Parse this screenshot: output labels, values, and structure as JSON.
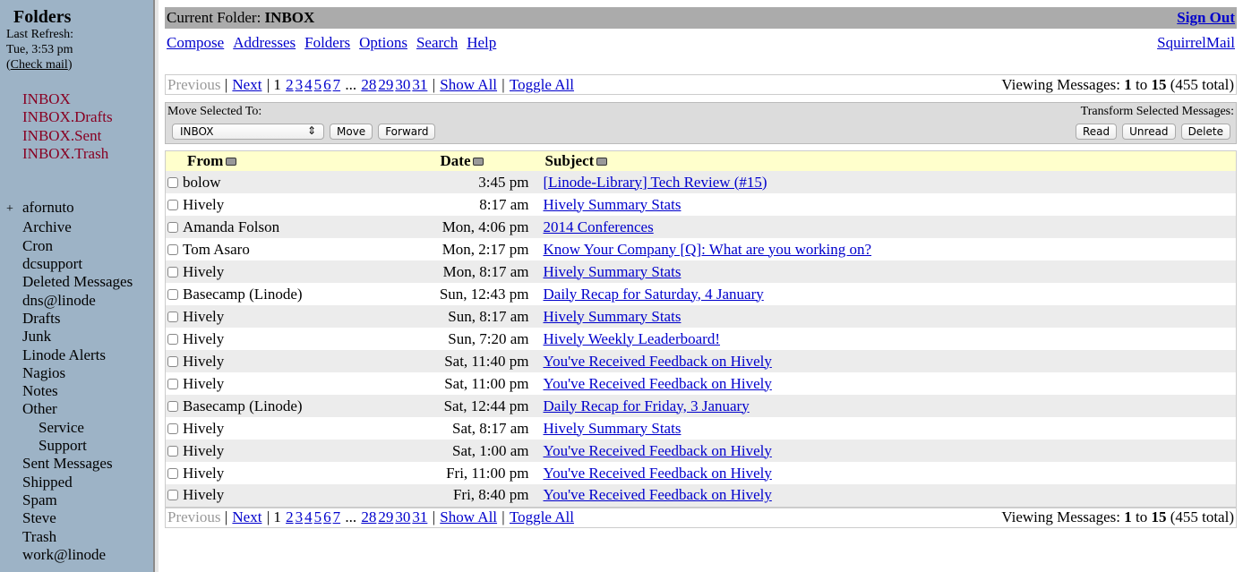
{
  "sidebar": {
    "title": "Folders",
    "last_refresh_label": "Last Refresh:",
    "last_refresh_time": "Tue, 3:53 pm",
    "check_mail": "Check mail",
    "special": [
      "INBOX",
      "INBOX.Drafts",
      "INBOX.Sent",
      "INBOX.Trash"
    ],
    "folders": [
      {
        "label": "afornuto",
        "prefix": "+",
        "level": 0
      },
      {
        "label": "Archive",
        "level": 0
      },
      {
        "label": "Cron",
        "level": 0
      },
      {
        "label": "dcsupport",
        "level": 0
      },
      {
        "label": "Deleted Messages",
        "level": 0
      },
      {
        "label": "dns@linode",
        "level": 0
      },
      {
        "label": "Drafts",
        "level": 0
      },
      {
        "label": "Junk",
        "level": 0
      },
      {
        "label": "Linode Alerts",
        "level": 0
      },
      {
        "label": "Nagios",
        "level": 0
      },
      {
        "label": "Notes",
        "level": 0
      },
      {
        "label": "Other",
        "level": 0
      },
      {
        "label": "Service",
        "level": 1
      },
      {
        "label": "Support",
        "level": 1
      },
      {
        "label": "Sent Messages",
        "level": 0
      },
      {
        "label": "Shipped",
        "level": 0
      },
      {
        "label": "Spam",
        "level": 0
      },
      {
        "label": "Steve",
        "level": 0
      },
      {
        "label": "Trash",
        "level": 0
      },
      {
        "label": "work@linode",
        "level": 0
      }
    ]
  },
  "header": {
    "current_folder_label": "Current Folder:",
    "current_folder": "INBOX",
    "sign_out": "Sign Out",
    "brand": "SquirrelMail",
    "nav": [
      "Compose",
      "Addresses",
      "Folders",
      "Options",
      "Search",
      "Help"
    ]
  },
  "pager": {
    "previous": "Previous",
    "next": "Next",
    "current": "1",
    "pages": [
      "2",
      "3",
      "4",
      "5",
      "6",
      "7"
    ],
    "ellipsis": "...",
    "pages_end": [
      "28",
      "29",
      "30",
      "31"
    ],
    "show_all": "Show All",
    "toggle_all": "Toggle All",
    "viewing_label": "Viewing Messages:",
    "from": "1",
    "to_label": "to",
    "to": "15",
    "total": "(455 total)"
  },
  "actions": {
    "move_label": "Move Selected To:",
    "move_target": "INBOX",
    "move": "Move",
    "forward": "Forward",
    "transform_label": "Transform Selected Messages:",
    "read": "Read",
    "unread": "Unread",
    "delete": "Delete"
  },
  "table": {
    "columns": [
      "From",
      "Date",
      "Subject"
    ],
    "rows": [
      {
        "from": "bolow",
        "date": "3:45 pm",
        "subject": "[Linode-Library] Tech Review (#15)"
      },
      {
        "from": "Hively",
        "date": "8:17 am",
        "subject": "Hively Summary Stats"
      },
      {
        "from": "Amanda Folson",
        "date": "Mon, 4:06 pm",
        "subject": "2014 Conferences"
      },
      {
        "from": "Tom Asaro",
        "date": "Mon, 2:17 pm",
        "subject": "Know Your Company [Q]: What are you working on?"
      },
      {
        "from": "Hively",
        "date": "Mon, 8:17 am",
        "subject": "Hively Summary Stats"
      },
      {
        "from": "Basecamp (Linode)",
        "date": "Sun, 12:43 pm",
        "subject": "Daily Recap for Saturday, 4 January"
      },
      {
        "from": "Hively",
        "date": "Sun, 8:17 am",
        "subject": "Hively Summary Stats"
      },
      {
        "from": "Hively",
        "date": "Sun, 7:20 am",
        "subject": "Hively Weekly Leaderboard!"
      },
      {
        "from": "Hively",
        "date": "Sat, 11:40 pm",
        "subject": "You've Received Feedback on Hively"
      },
      {
        "from": "Hively",
        "date": "Sat, 11:00 pm",
        "subject": "You've Received Feedback on Hively"
      },
      {
        "from": "Basecamp (Linode)",
        "date": "Sat, 12:44 pm",
        "subject": "Daily Recap for Friday, 3 January"
      },
      {
        "from": "Hively",
        "date": "Sat, 8:17 am",
        "subject": "Hively Summary Stats"
      },
      {
        "from": "Hively",
        "date": "Sat, 1:00 am",
        "subject": "You've Received Feedback on Hively"
      },
      {
        "from": "Hively",
        "date": "Fri, 11:00 pm",
        "subject": "You've Received Feedback on Hively"
      },
      {
        "from": "Hively",
        "date": "Fri, 8:40 pm",
        "subject": "You've Received Feedback on Hively"
      }
    ]
  }
}
